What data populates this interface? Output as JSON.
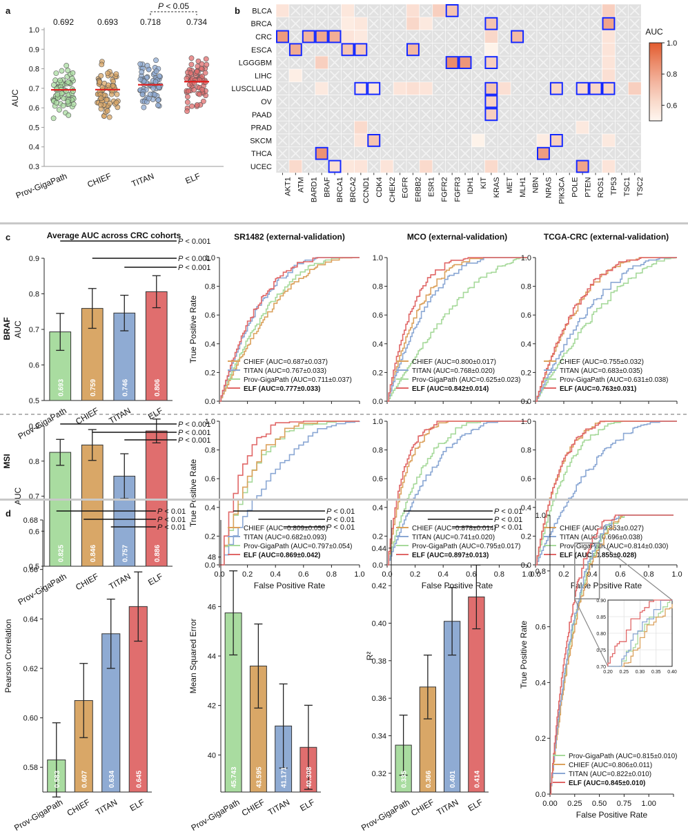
{
  "panel_labels": {
    "a": "a",
    "b": "b",
    "c": "c",
    "d": "d"
  },
  "colors": {
    "prov": "#a9dca0",
    "chief": "#d9a767",
    "titan": "#8fabd3",
    "elf": "#e06e6e",
    "prov_line": "#a6d99a",
    "chief_line": "#dba15c",
    "titan_line": "#8aa7d4",
    "elf_line": "#e06666",
    "median": "#e02020",
    "highlight": "#1226ff"
  },
  "chart_data": [
    {
      "id": "a",
      "type": "scatter",
      "ylabel": "AUC",
      "ylim": [
        0.3,
        1.0
      ],
      "yticks": [
        "0.3",
        "0.4",
        "0.5",
        "0.6",
        "0.7",
        "0.8",
        "0.9",
        "1.0"
      ],
      "categories": [
        "Prov-GigaPath",
        "CHIEF",
        "TITAN",
        "ELF"
      ],
      "means": [
        0.692,
        0.693,
        0.718,
        0.734
      ],
      "mean_labels": [
        "0.692",
        "0.693",
        "0.718",
        "0.734"
      ],
      "significance": {
        "between": [
          "TITAN",
          "ELF"
        ],
        "label": "P < 0.05"
      }
    },
    {
      "id": "b",
      "type": "heatmap",
      "rows": [
        "BLCA",
        "BRCA",
        "CRC",
        "ESCA",
        "LGGGBM",
        "LIHC",
        "LUSCLUAD",
        "OV",
        "PAAD",
        "PRAD",
        "SKCM",
        "THCA",
        "UCEC"
      ],
      "cols": [
        "AKT1",
        "ATM",
        "BARD1",
        "BRAF",
        "BRCA1",
        "BRCA2",
        "CCND1",
        "CDK4",
        "CHEK2",
        "EGFR",
        "ERBB2",
        "ESR1",
        "FGFR2",
        "FGFR3",
        "IDH1",
        "KIT",
        "KRAS",
        "MET",
        "MLH1",
        "NBN",
        "NRAS",
        "PIK3CA",
        "POLE",
        "PTEN",
        "ROS1",
        "TP53",
        "TSC1",
        "TSC2"
      ],
      "colorbar": {
        "label": "AUC",
        "ticks": [
          "1.0",
          "0.8",
          "0.6"
        ],
        "range": [
          0.5,
          1.0
        ]
      },
      "cells": [
        [
          "BLCA",
          "AKT1",
          0.58
        ],
        [
          "BLCA",
          "BRCA2",
          0.57
        ],
        [
          "BLCA",
          "ERBB2",
          0.6
        ],
        [
          "BLCA",
          "FGFR2",
          0.66
        ],
        [
          "BLCA",
          "FGFR3",
          0.7
        ],
        [
          "BLCA",
          "TP53",
          0.66
        ],
        [
          "BRCA",
          "ERBB2",
          0.63
        ],
        [
          "BRCA",
          "ESR1",
          0.56
        ],
        [
          "BRCA",
          "BRCA2",
          0.55
        ],
        [
          "BRCA",
          "CCND1",
          0.57
        ],
        [
          "BRCA",
          "KRAS",
          0.7
        ],
        [
          "BRCA",
          "TP53",
          0.8
        ],
        [
          "CRC",
          "AKT1",
          0.83
        ],
        [
          "CRC",
          "BARD1",
          0.75
        ],
        [
          "CRC",
          "BRAF",
          0.79
        ],
        [
          "CRC",
          "BRCA1",
          0.77
        ],
        [
          "CRC",
          "BRCA2",
          0.58
        ],
        [
          "CRC",
          "CCND1",
          0.56
        ],
        [
          "CRC",
          "KRAS",
          0.63
        ],
        [
          "CRC",
          "MLH1",
          0.73
        ],
        [
          "CRC",
          "TP53",
          0.58
        ],
        [
          "ESCA",
          "ATM",
          0.78
        ],
        [
          "ESCA",
          "BRCA2",
          0.7
        ],
        [
          "ESCA",
          "CCND1",
          0.68
        ],
        [
          "ESCA",
          "ERBB2",
          0.74
        ],
        [
          "ESCA",
          "KRAS",
          0.52
        ],
        [
          "ESCA",
          "TP53",
          0.58
        ],
        [
          "LGGGBM",
          "BRAF",
          0.66
        ],
        [
          "LGGGBM",
          "FGFR3",
          0.87
        ],
        [
          "LGGGBM",
          "IDH1",
          0.84
        ],
        [
          "LGGGBM",
          "KRAS",
          0.66
        ],
        [
          "LGGGBM",
          "TP53",
          0.58
        ],
        [
          "LIHC",
          "ATM",
          0.54
        ],
        [
          "LIHC",
          "TP53",
          0.6
        ],
        [
          "LUSCLUAD",
          "BRAF",
          0.56
        ],
        [
          "LUSCLUAD",
          "CCND1",
          0.58
        ],
        [
          "LUSCLUAD",
          "CDK4",
          0.57
        ],
        [
          "LUSCLUAD",
          "EGFR",
          0.58
        ],
        [
          "LUSCLUAD",
          "ERBB2",
          0.6
        ],
        [
          "LUSCLUAD",
          "ESR1",
          0.58
        ],
        [
          "LUSCLUAD",
          "KRAS",
          0.7
        ],
        [
          "LUSCLUAD",
          "MET",
          0.6
        ],
        [
          "LUSCLUAD",
          "PIK3CA",
          0.64
        ],
        [
          "LUSCLUAD",
          "PTEN",
          0.62
        ],
        [
          "LUSCLUAD",
          "ROS1",
          0.63
        ],
        [
          "LUSCLUAD",
          "TP53",
          0.64
        ],
        [
          "LUSCLUAD",
          "TSC2",
          0.66
        ],
        [
          "OV",
          "KRAS",
          0.65
        ],
        [
          "PAAD",
          "KRAS",
          0.66
        ],
        [
          "PRAD",
          "CCND1",
          0.62
        ],
        [
          "PRAD",
          "PTEN",
          0.56
        ],
        [
          "SKCM",
          "CCND1",
          0.58
        ],
        [
          "SKCM",
          "CDK4",
          0.7
        ],
        [
          "SKCM",
          "KIT",
          0.52
        ],
        [
          "SKCM",
          "NRAS",
          0.55
        ],
        [
          "SKCM",
          "PIK3CA",
          0.66
        ],
        [
          "SKCM",
          "TP53",
          0.56
        ],
        [
          "THCA",
          "BRAF",
          0.85
        ],
        [
          "THCA",
          "NRAS",
          0.82
        ],
        [
          "UCEC",
          "ATM",
          0.62
        ],
        [
          "UCEC",
          "BRCA1",
          0.6
        ],
        [
          "UCEC",
          "BRCA2",
          0.57
        ],
        [
          "UCEC",
          "CCND1",
          0.58
        ],
        [
          "UCEC",
          "CHEK2",
          0.58
        ],
        [
          "UCEC",
          "ESR1",
          0.62
        ],
        [
          "UCEC",
          "KRAS",
          0.62
        ],
        [
          "UCEC",
          "PTEN",
          0.8
        ],
        [
          "UCEC",
          "TP53",
          0.58
        ]
      ],
      "highlighted": [
        [
          "BLCA",
          "FGFR3"
        ],
        [
          "BRCA",
          "KRAS"
        ],
        [
          "BRCA",
          "TP53"
        ],
        [
          "CRC",
          "AKT1"
        ],
        [
          "CRC",
          "BARD1"
        ],
        [
          "CRC",
          "BRAF"
        ],
        [
          "CRC",
          "BRCA1"
        ],
        [
          "CRC",
          "MLH1"
        ],
        [
          "ESCA",
          "ATM"
        ],
        [
          "ESCA",
          "BRCA2"
        ],
        [
          "ESCA",
          "CCND1"
        ],
        [
          "ESCA",
          "ERBB2"
        ],
        [
          "LGGGBM",
          "FGFR3"
        ],
        [
          "LGGGBM",
          "IDH1"
        ],
        [
          "LGGGBM",
          "KRAS"
        ],
        [
          "LUSCLUAD",
          "CCND1"
        ],
        [
          "LUSCLUAD",
          "CDK4"
        ],
        [
          "LUSCLUAD",
          "KRAS"
        ],
        [
          "LUSCLUAD",
          "PIK3CA"
        ],
        [
          "LUSCLUAD",
          "PTEN"
        ],
        [
          "LUSCLUAD",
          "ROS1"
        ],
        [
          "LUSCLUAD",
          "TP53"
        ],
        [
          "OV",
          "KRAS"
        ],
        [
          "PAAD",
          "KRAS"
        ],
        [
          "SKCM",
          "CDK4"
        ],
        [
          "SKCM",
          "PIK3CA"
        ],
        [
          "THCA",
          "BRAF"
        ],
        [
          "THCA",
          "NRAS"
        ],
        [
          "UCEC",
          "BRCA1"
        ],
        [
          "UCEC",
          "PTEN"
        ]
      ]
    },
    {
      "id": "c_braf_bar",
      "type": "bar",
      "row_label": "BRAF",
      "title": "Average AUC across CRC cohorts",
      "ylabel": "AUC",
      "ylim": [
        0.5,
        0.9
      ],
      "yticks": [
        "0.5",
        "0.6",
        "0.7",
        "0.8",
        "0.9"
      ],
      "categories": [
        "Prov-GigaPath",
        "CHIEF",
        "TITAN",
        "ELF"
      ],
      "values": [
        0.693,
        0.759,
        0.746,
        0.806
      ],
      "errors": [
        0.052,
        0.056,
        0.05,
        0.045
      ],
      "value_labels": [
        "0.693",
        "0.759",
        "0.746",
        "0.806"
      ],
      "pvalues": [
        "P < 0.001",
        "P < 0.001",
        "P < 0.001"
      ]
    },
    {
      "id": "c_msi_bar",
      "type": "bar",
      "row_label": "MSI",
      "ylabel": "AUC",
      "ylim": [
        0.5,
        0.9
      ],
      "yticks": [
        "0.5",
        "0.6",
        "0.7",
        "0.8",
        "0.9"
      ],
      "categories": [
        "Prov-GigaPath",
        "CHIEF",
        "TITAN",
        "ELF"
      ],
      "values": [
        0.825,
        0.846,
        0.757,
        0.886
      ],
      "errors": [
        0.037,
        0.044,
        0.064,
        0.034
      ],
      "value_labels": [
        "0.825",
        "0.846",
        "0.757",
        "0.886"
      ],
      "pvalues": [
        "P < 0.001",
        "P < 0.001",
        "P < 0.001"
      ]
    },
    {
      "id": "c_braf_sr",
      "type": "line",
      "title": "SR1482 (external-validation)",
      "xlabel": "",
      "ylabel": "True Positive Rate",
      "xticks": [],
      "yticks": [
        "0.0",
        "0.2",
        "0.4",
        "0.6",
        "0.8",
        "1.0"
      ],
      "series": [
        {
          "name": "CHIEF (AUC=0.687±0.037)",
          "auc": 0.687
        },
        {
          "name": "TITAN (AUC=0.767±0.033)",
          "auc": 0.767
        },
        {
          "name": "Prov-GigaPath (AUC=0.711±0.037)",
          "auc": 0.711
        },
        {
          "name": "ELF (AUC=0.777±0.033)",
          "auc": 0.777
        }
      ]
    },
    {
      "id": "c_braf_mco",
      "type": "line",
      "title": "MCO (external-validation)",
      "xlabel": "",
      "ylabel": "",
      "xticks": [],
      "yticks": [
        "0.0",
        "0.2",
        "0.4",
        "0.6",
        "0.8",
        "1.0"
      ],
      "series": [
        {
          "name": "CHIEF (AUC=0.800±0.017)",
          "auc": 0.8
        },
        {
          "name": "TITAN (AUC=0.768±0.020)",
          "auc": 0.768
        },
        {
          "name": "Prov-GigaPath (AUC=0.625±0.023)",
          "auc": 0.625
        },
        {
          "name": "ELF (AUC=0.842±0.014)",
          "auc": 0.842
        }
      ]
    },
    {
      "id": "c_braf_tcga",
      "type": "line",
      "title": "TCGA-CRC (external-validation)",
      "xlabel": "",
      "ylabel": "",
      "xticks": [],
      "yticks": [
        "0.0",
        "0.2",
        "0.4",
        "0.6",
        "0.8",
        "1.0"
      ],
      "series": [
        {
          "name": "CHIEF (AUC=0.755±0.032)",
          "auc": 0.755
        },
        {
          "name": "TITAN (AUC=0.683±0.035)",
          "auc": 0.683
        },
        {
          "name": "Prov-GigaPath (AUC=0.631±0.038)",
          "auc": 0.631
        },
        {
          "name": "ELF (AUC=0.763±0.031)",
          "auc": 0.763
        }
      ]
    },
    {
      "id": "c_msi_sr",
      "type": "line",
      "title": "",
      "xlabel": "False Positive Rate",
      "ylabel": "True Positive Rate",
      "xticks": [
        "0.0",
        "0.2",
        "0.4",
        "0.6",
        "0.8",
        "1.0"
      ],
      "yticks": [
        "0.0",
        "0.2",
        "0.4",
        "0.6",
        "0.8",
        "1.0"
      ],
      "series": [
        {
          "name": "CHIEF (AUC=0.809±0.050)",
          "auc": 0.809
        },
        {
          "name": "TITAN (AUC=0.682±0.093)",
          "auc": 0.682
        },
        {
          "name": "Prov-GigaPath (AUC=0.797±0.054)",
          "auc": 0.797
        },
        {
          "name": "ELF (AUC=0.869±0.042)",
          "auc": 0.869
        }
      ]
    },
    {
      "id": "c_msi_mco",
      "type": "line",
      "title": "",
      "xlabel": "False Positive Rate",
      "ylabel": "",
      "xticks": [
        "0.0",
        "0.2",
        "0.4",
        "0.6",
        "0.8",
        "1.0"
      ],
      "yticks": [
        "0.0",
        "0.2",
        "0.4",
        "0.6",
        "0.8",
        "1.0"
      ],
      "series": [
        {
          "name": "CHIEF (AUC=0.878±0.014)",
          "auc": 0.878
        },
        {
          "name": "TITAN (AUC=0.741±0.020)",
          "auc": 0.741
        },
        {
          "name": "Prov-GigaPath (AUC=0.795±0.017)",
          "auc": 0.795
        },
        {
          "name": "ELF (AUC=0.897±0.013)",
          "auc": 0.897
        }
      ]
    },
    {
      "id": "c_msi_tcga",
      "type": "line",
      "title": "",
      "xlabel": "False Positive Rate",
      "ylabel": "",
      "xticks": [
        "0.0",
        "0.2",
        "0.4",
        "0.6",
        "0.8",
        "1.0"
      ],
      "yticks": [
        "0.0",
        "0.2",
        "0.4",
        "0.6",
        "0.8",
        "1.0"
      ],
      "series": [
        {
          "name": "CHIEF (AUC=0.853±0.027)",
          "auc": 0.853
        },
        {
          "name": "TITAN (AUC=0.696±0.038)",
          "auc": 0.696
        },
        {
          "name": "Prov-GigaPath (AUC=0.814±0.030)",
          "auc": 0.814
        },
        {
          "name": "ELF (AUC=0.855±0.028)",
          "auc": 0.855
        }
      ]
    },
    {
      "id": "d_pearson",
      "type": "bar",
      "ylabel": "Pearson Correlation",
      "ylim": [
        0.57,
        0.68
      ],
      "yticks": [
        "0.58",
        "0.60",
        "0.62",
        "0.64",
        "0.66",
        "0.68"
      ],
      "categories": [
        "Prov-GigaPath",
        "CHIEF",
        "TITAN",
        "ELF"
      ],
      "values": [
        0.583,
        0.607,
        0.634,
        0.645
      ],
      "errors": [
        0.015,
        0.015,
        0.014,
        0.014
      ],
      "value_labels": [
        "0.583",
        "0.607",
        "0.634",
        "0.645"
      ],
      "pvalues": [
        "P < 0.01",
        "P < 0.01",
        "P < 0.01"
      ]
    },
    {
      "id": "d_mse",
      "type": "bar",
      "ylabel": "Mean Squared Error",
      "ylim": [
        38.5,
        49.5
      ],
      "yticks": [
        "40",
        "42",
        "44",
        "46",
        "48"
      ],
      "categories": [
        "Prov-GigaPath",
        "CHIEF",
        "TITAN",
        "ELF"
      ],
      "values": [
        45.743,
        43.595,
        41.171,
        40.308
      ],
      "errors": [
        1.7,
        1.7,
        1.7,
        1.7
      ],
      "value_labels": [
        "45.743",
        "43.595",
        "41.171",
        "40.308"
      ],
      "pvalues": [
        "P < 0.01",
        "P < 0.01",
        "P < 0.01"
      ]
    },
    {
      "id": "d_r2",
      "type": "bar",
      "ylabel": "R²",
      "ylim": [
        0.31,
        0.455
      ],
      "yticks": [
        "0.32",
        "0.34",
        "0.36",
        "0.38",
        "0.40",
        "0.42",
        "0.44"
      ],
      "categories": [
        "Prov-GigaPath",
        "CHIEF",
        "TITAN",
        "ELF"
      ],
      "values": [
        0.335,
        0.366,
        0.401,
        0.414
      ],
      "errors": [
        0.016,
        0.017,
        0.018,
        0.017
      ],
      "value_labels": [
        "0.335",
        "0.366",
        "0.401",
        "0.414"
      ],
      "pvalues": [
        "P < 0.01",
        "P < 0.01",
        "P < 0.01"
      ]
    },
    {
      "id": "d_roc",
      "type": "line",
      "xlabel": "False Positive Rate",
      "ylabel": "True Positive Rate",
      "xticks": [
        "0.00",
        "0.25",
        "0.50",
        "0.75",
        "1.00"
      ],
      "yticks": [
        "0.0",
        "0.2",
        "0.4",
        "0.6",
        "0.8",
        "1.0"
      ],
      "series": [
        {
          "name": "Prov-GigaPath (AUC=0.815±0.010)",
          "auc": 0.815
        },
        {
          "name": "CHIEF (AUC=0.806±0.011)",
          "auc": 0.806
        },
        {
          "name": "TITAN (AUC=0.822±0.010)",
          "auc": 0.822
        },
        {
          "name": "ELF (AUC=0.845±0.010)",
          "auc": 0.845
        }
      ],
      "inset": {
        "xlim": [
          0.2,
          0.4
        ],
        "ylim": [
          0.7,
          0.9
        ],
        "xticks": [
          "0.20",
          "0.25",
          "0.30",
          "0.35",
          "0.40"
        ],
        "yticks": [
          "0.70",
          "0.75",
          "0.80",
          "0.85",
          "0.90"
        ]
      }
    }
  ]
}
